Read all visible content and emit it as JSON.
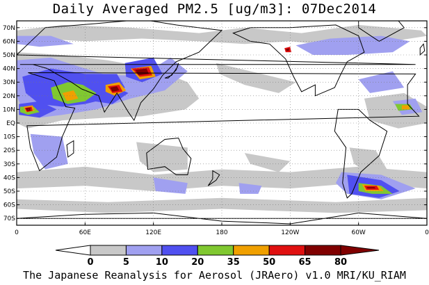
{
  "title": "Daily Averaged PM2.5 [ug/m3]: 07Dec2014",
  "credit": "The Japanese Reanalysis for Aerosol (JRAero) v1.0 MRI/KU_RIAM",
  "map": {
    "lon_min": 0,
    "lon_max": 360,
    "lat_min": -75,
    "lat_max": 75,
    "lat_labels": [
      "70N",
      "60N",
      "50N",
      "40N",
      "30N",
      "20N",
      "10N",
      "EQ",
      "10S",
      "20S",
      "30S",
      "40S",
      "50S",
      "60S",
      "70S"
    ],
    "lat_values": [
      70,
      60,
      50,
      40,
      30,
      20,
      10,
      0,
      -10,
      -20,
      -30,
      -40,
      -50,
      -60,
      -70
    ],
    "lon_labels": [
      "0",
      "60E",
      "120E",
      "180",
      "120W",
      "60W",
      "0"
    ],
    "lon_values": [
      0,
      60,
      120,
      180,
      240,
      300,
      360
    ]
  },
  "colorbar": {
    "levels": [
      "0",
      "5",
      "10",
      "20",
      "35",
      "50",
      "65",
      "80"
    ],
    "colors": [
      "#ffffff",
      "#c8c8c8",
      "#a0a0f0",
      "#5050f0",
      "#80c830",
      "#f0a000",
      "#e01010",
      "#800000"
    ]
  }
}
